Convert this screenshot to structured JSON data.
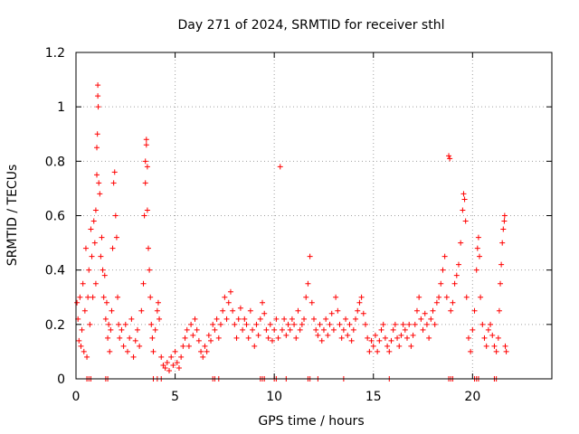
{
  "chart_data": {
    "type": "scatter",
    "title": "Day 271 of 2024, SRMTID for receiver sthl",
    "xlabel": "GPS time / hours",
    "ylabel": "SRMTID / TECUs",
    "xlim": [
      0,
      24
    ],
    "ylim": [
      0,
      1.2
    ],
    "x_ticks": [
      0,
      5,
      10,
      15,
      20
    ],
    "x_tick_labels": [
      "0",
      "5",
      "10",
      "15",
      "20"
    ],
    "y_ticks": [
      0,
      0.2,
      0.4,
      0.6,
      0.8,
      1.0,
      1.2
    ],
    "y_tick_labels": [
      "0",
      "0.2",
      "0.4",
      "0.6",
      "0.8",
      "1",
      "1.2"
    ],
    "grid": true,
    "marker": "+",
    "color": "#ff0000",
    "series": [
      {
        "name": "SRMTID",
        "points": [
          [
            0.05,
            0.28
          ],
          [
            0.1,
            0.22
          ],
          [
            0.15,
            0.14
          ],
          [
            0.2,
            0.3
          ],
          [
            0.25,
            0.12
          ],
          [
            0.3,
            0.18
          ],
          [
            0.35,
            0.35
          ],
          [
            0.4,
            0.1
          ],
          [
            0.45,
            0.25
          ],
          [
            0.5,
            0.48
          ],
          [
            0.55,
            0.08
          ],
          [
            0.6,
            0.3
          ],
          [
            0.65,
            0.4
          ],
          [
            0.7,
            0.2
          ],
          [
            0.75,
            0.55
          ],
          [
            0.8,
            0.45
          ],
          [
            0.85,
            0.3
          ],
          [
            0.9,
            0.58
          ],
          [
            0.95,
            0.5
          ],
          [
            1.0,
            0.62
          ],
          [
            1.0,
            0.35
          ],
          [
            1.05,
            0.75
          ],
          [
            1.05,
            0.85
          ],
          [
            1.08,
            0.9
          ],
          [
            1.1,
            1.08
          ],
          [
            1.1,
            1.04
          ],
          [
            1.12,
            1.0
          ],
          [
            1.15,
            0.72
          ],
          [
            1.2,
            0.68
          ],
          [
            1.25,
            0.45
          ],
          [
            1.3,
            0.52
          ],
          [
            1.35,
            0.4
          ],
          [
            1.4,
            0.3
          ],
          [
            1.45,
            0.38
          ],
          [
            1.5,
            0.22
          ],
          [
            1.55,
            0.28
          ],
          [
            1.6,
            0.15
          ],
          [
            1.65,
            0.2
          ],
          [
            1.7,
            0.1
          ],
          [
            1.75,
            0.18
          ],
          [
            1.8,
            0.25
          ],
          [
            1.85,
            0.48
          ],
          [
            1.9,
            0.72
          ],
          [
            1.95,
            0.76
          ],
          [
            2.0,
            0.6
          ],
          [
            2.05,
            0.52
          ],
          [
            2.1,
            0.3
          ],
          [
            2.15,
            0.2
          ],
          [
            2.2,
            0.15
          ],
          [
            2.3,
            0.18
          ],
          [
            2.4,
            0.12
          ],
          [
            2.5,
            0.2
          ],
          [
            2.6,
            0.1
          ],
          [
            2.7,
            0.15
          ],
          [
            2.8,
            0.22
          ],
          [
            2.9,
            0.08
          ],
          [
            3.0,
            0.14
          ],
          [
            3.1,
            0.18
          ],
          [
            3.2,
            0.12
          ],
          [
            3.3,
            0.25
          ],
          [
            3.4,
            0.35
          ],
          [
            3.45,
            0.6
          ],
          [
            3.5,
            0.72
          ],
          [
            3.5,
            0.8
          ],
          [
            3.55,
            0.86
          ],
          [
            3.55,
            0.88
          ],
          [
            3.6,
            0.78
          ],
          [
            3.6,
            0.62
          ],
          [
            3.65,
            0.48
          ],
          [
            3.7,
            0.4
          ],
          [
            3.75,
            0.3
          ],
          [
            3.8,
            0.2
          ],
          [
            3.85,
            0.15
          ],
          [
            3.9,
            0.1
          ],
          [
            4.0,
            0.18
          ],
          [
            4.1,
            0.25
          ],
          [
            4.15,
            0.28
          ],
          [
            4.2,
            0.22
          ],
          [
            4.3,
            0.08
          ],
          [
            4.4,
            0.05
          ],
          [
            4.5,
            0.04
          ],
          [
            4.6,
            0.06
          ],
          [
            4.7,
            0.03
          ],
          [
            4.8,
            0.08
          ],
          [
            4.9,
            0.05
          ],
          [
            5.0,
            0.1
          ],
          [
            5.1,
            0.06
          ],
          [
            5.2,
            0.04
          ],
          [
            5.3,
            0.08
          ],
          [
            5.4,
            0.12
          ],
          [
            5.5,
            0.15
          ],
          [
            5.6,
            0.18
          ],
          [
            5.7,
            0.12
          ],
          [
            5.8,
            0.2
          ],
          [
            5.9,
            0.16
          ],
          [
            6.0,
            0.22
          ],
          [
            6.1,
            0.18
          ],
          [
            6.2,
            0.14
          ],
          [
            6.3,
            0.1
          ],
          [
            6.4,
            0.08
          ],
          [
            6.5,
            0.12
          ],
          [
            6.6,
            0.1
          ],
          [
            6.7,
            0.16
          ],
          [
            6.8,
            0.14
          ],
          [
            6.9,
            0.2
          ],
          [
            7.0,
            0.18
          ],
          [
            7.1,
            0.22
          ],
          [
            7.2,
            0.15
          ],
          [
            7.3,
            0.2
          ],
          [
            7.4,
            0.25
          ],
          [
            7.5,
            0.3
          ],
          [
            7.6,
            0.22
          ],
          [
            7.7,
            0.28
          ],
          [
            7.8,
            0.32
          ],
          [
            7.9,
            0.25
          ],
          [
            8.0,
            0.2
          ],
          [
            8.1,
            0.15
          ],
          [
            8.2,
            0.22
          ],
          [
            8.3,
            0.26
          ],
          [
            8.4,
            0.18
          ],
          [
            8.5,
            0.22
          ],
          [
            8.6,
            0.2
          ],
          [
            8.7,
            0.15
          ],
          [
            8.8,
            0.25
          ],
          [
            8.9,
            0.18
          ],
          [
            9.0,
            0.12
          ],
          [
            9.1,
            0.2
          ],
          [
            9.2,
            0.16
          ],
          [
            9.3,
            0.22
          ],
          [
            9.4,
            0.28
          ],
          [
            9.5,
            0.24
          ],
          [
            9.6,
            0.18
          ],
          [
            9.7,
            0.15
          ],
          [
            9.8,
            0.2
          ],
          [
            9.9,
            0.14
          ],
          [
            10.0,
            0.18
          ],
          [
            10.1,
            0.22
          ],
          [
            10.2,
            0.15
          ],
          [
            10.3,
            0.78
          ],
          [
            10.4,
            0.18
          ],
          [
            10.5,
            0.22
          ],
          [
            10.6,
            0.16
          ],
          [
            10.7,
            0.2
          ],
          [
            10.8,
            0.18
          ],
          [
            10.9,
            0.22
          ],
          [
            11.0,
            0.2
          ],
          [
            11.1,
            0.15
          ],
          [
            11.2,
            0.25
          ],
          [
            11.3,
            0.18
          ],
          [
            11.4,
            0.2
          ],
          [
            11.5,
            0.22
          ],
          [
            11.6,
            0.3
          ],
          [
            11.7,
            0.35
          ],
          [
            11.8,
            0.45
          ],
          [
            11.9,
            0.28
          ],
          [
            12.0,
            0.22
          ],
          [
            12.1,
            0.18
          ],
          [
            12.2,
            0.16
          ],
          [
            12.3,
            0.2
          ],
          [
            12.4,
            0.14
          ],
          [
            12.5,
            0.18
          ],
          [
            12.6,
            0.22
          ],
          [
            12.7,
            0.16
          ],
          [
            12.8,
            0.2
          ],
          [
            12.9,
            0.24
          ],
          [
            13.0,
            0.18
          ],
          [
            13.1,
            0.3
          ],
          [
            13.2,
            0.25
          ],
          [
            13.3,
            0.2
          ],
          [
            13.4,
            0.15
          ],
          [
            13.5,
            0.18
          ],
          [
            13.6,
            0.22
          ],
          [
            13.7,
            0.16
          ],
          [
            13.8,
            0.2
          ],
          [
            13.9,
            0.14
          ],
          [
            14.0,
            0.18
          ],
          [
            14.1,
            0.22
          ],
          [
            14.2,
            0.25
          ],
          [
            14.3,
            0.28
          ],
          [
            14.4,
            0.3
          ],
          [
            14.5,
            0.24
          ],
          [
            14.6,
            0.2
          ],
          [
            14.7,
            0.15
          ],
          [
            14.8,
            0.1
          ],
          [
            14.9,
            0.14
          ],
          [
            15.0,
            0.12
          ],
          [
            15.1,
            0.16
          ],
          [
            15.2,
            0.1
          ],
          [
            15.3,
            0.14
          ],
          [
            15.4,
            0.18
          ],
          [
            15.5,
            0.2
          ],
          [
            15.6,
            0.15
          ],
          [
            15.7,
            0.12
          ],
          [
            15.8,
            0.1
          ],
          [
            15.9,
            0.14
          ],
          [
            16.0,
            0.18
          ],
          [
            16.1,
            0.2
          ],
          [
            16.2,
            0.15
          ],
          [
            16.3,
            0.12
          ],
          [
            16.4,
            0.16
          ],
          [
            16.5,
            0.2
          ],
          [
            16.6,
            0.18
          ],
          [
            16.7,
            0.15
          ],
          [
            16.8,
            0.2
          ],
          [
            16.9,
            0.12
          ],
          [
            17.0,
            0.16
          ],
          [
            17.1,
            0.2
          ],
          [
            17.2,
            0.25
          ],
          [
            17.3,
            0.3
          ],
          [
            17.4,
            0.22
          ],
          [
            17.5,
            0.18
          ],
          [
            17.6,
            0.24
          ],
          [
            17.7,
            0.2
          ],
          [
            17.8,
            0.15
          ],
          [
            17.9,
            0.22
          ],
          [
            18.0,
            0.25
          ],
          [
            18.1,
            0.2
          ],
          [
            18.2,
            0.28
          ],
          [
            18.3,
            0.3
          ],
          [
            18.4,
            0.35
          ],
          [
            18.5,
            0.4
          ],
          [
            18.6,
            0.45
          ],
          [
            18.7,
            0.3
          ],
          [
            18.8,
            0.82
          ],
          [
            18.85,
            0.81
          ],
          [
            18.9,
            0.25
          ],
          [
            19.0,
            0.28
          ],
          [
            19.1,
            0.35
          ],
          [
            19.2,
            0.38
          ],
          [
            19.3,
            0.42
          ],
          [
            19.4,
            0.5
          ],
          [
            19.5,
            0.62
          ],
          [
            19.55,
            0.68
          ],
          [
            19.6,
            0.66
          ],
          [
            19.65,
            0.58
          ],
          [
            19.7,
            0.3
          ],
          [
            19.8,
            0.15
          ],
          [
            19.9,
            0.1
          ],
          [
            20.0,
            0.18
          ],
          [
            20.1,
            0.25
          ],
          [
            20.2,
            0.4
          ],
          [
            20.25,
            0.48
          ],
          [
            20.3,
            0.52
          ],
          [
            20.35,
            0.45
          ],
          [
            20.4,
            0.3
          ],
          [
            20.5,
            0.2
          ],
          [
            20.6,
            0.15
          ],
          [
            20.7,
            0.12
          ],
          [
            20.8,
            0.18
          ],
          [
            20.9,
            0.2
          ],
          [
            21.0,
            0.16
          ],
          [
            21.1,
            0.12
          ],
          [
            21.2,
            0.1
          ],
          [
            21.3,
            0.15
          ],
          [
            21.35,
            0.25
          ],
          [
            21.4,
            0.35
          ],
          [
            21.45,
            0.42
          ],
          [
            21.5,
            0.5
          ],
          [
            21.55,
            0.55
          ],
          [
            21.6,
            0.58
          ],
          [
            21.62,
            0.6
          ],
          [
            21.65,
            0.12
          ],
          [
            21.7,
            0.1
          ]
        ],
        "zero_points": [
          0.55,
          0.65,
          0.75,
          1.5,
          1.6,
          3.9,
          4.1,
          4.3,
          6.9,
          7.0,
          7.2,
          9.3,
          9.4,
          9.5,
          10.0,
          10.1,
          10.6,
          11.7,
          11.8,
          12.2,
          13.5,
          15.8,
          18.8,
          18.9,
          19.0,
          20.1,
          20.2,
          20.3,
          21.1,
          21.2
        ]
      }
    ]
  }
}
